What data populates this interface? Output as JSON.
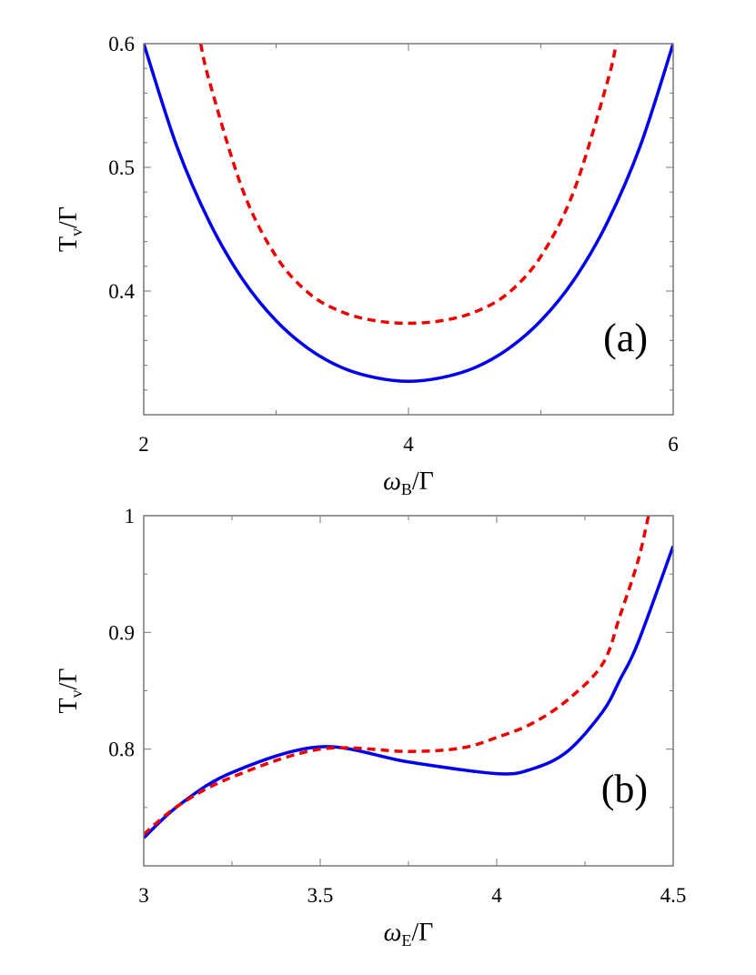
{
  "chart_data": [
    {
      "type": "line",
      "panel_label": "(a)",
      "xlabel": {
        "main": "ω",
        "sub": "B",
        "rest": "/Γ"
      },
      "ylabel": {
        "main": "T",
        "sub": "v",
        "rest": "/Γ"
      },
      "xlim": [
        2,
        6
      ],
      "ylim": [
        0.3,
        0.6
      ],
      "xticks": [
        2,
        4,
        6
      ],
      "xtick_labels": [
        "2",
        "4",
        "6"
      ],
      "yticks": [
        0.4,
        0.5,
        0.6
      ],
      "ytick_labels": [
        "0.4",
        "0.5",
        "0.6"
      ],
      "grid": false,
      "series": [
        {
          "style": "solid",
          "color": "#0000ee",
          "x": [
            2.0,
            2.25,
            2.5,
            2.75,
            3.0,
            3.25,
            3.5,
            3.75,
            4.0,
            4.25,
            4.5,
            4.75,
            5.0,
            5.25,
            5.5,
            5.75,
            6.0
          ],
          "y": [
            0.6,
            0.517,
            0.455,
            0.409,
            0.376,
            0.353,
            0.338,
            0.33,
            0.327,
            0.33,
            0.338,
            0.353,
            0.376,
            0.409,
            0.455,
            0.517,
            0.6
          ]
        },
        {
          "style": "dashed",
          "color": "#ee0000",
          "x": [
            2.43,
            2.5,
            2.75,
            3.0,
            3.25,
            3.5,
            3.75,
            4.0,
            4.25,
            4.5,
            4.75,
            5.0,
            5.25,
            5.5,
            5.57
          ],
          "y": [
            0.6,
            0.568,
            0.481,
            0.428,
            0.398,
            0.383,
            0.376,
            0.374,
            0.376,
            0.383,
            0.398,
            0.428,
            0.481,
            0.568,
            0.6
          ]
        }
      ]
    },
    {
      "type": "line",
      "panel_label": "(b)",
      "xlabel": {
        "main": "ω",
        "sub": "E",
        "rest": "/Γ"
      },
      "ylabel": {
        "main": "T",
        "sub": "v",
        "rest": "/Γ"
      },
      "xlim": [
        3,
        4.5
      ],
      "ylim": [
        0.7,
        1.0
      ],
      "xticks": [
        3,
        3.5,
        4,
        4.5
      ],
      "xtick_labels": [
        "3",
        "3.5",
        "4",
        "4.5"
      ],
      "yticks": [
        0.8,
        0.9,
        1.0
      ],
      "ytick_labels": [
        "0.8",
        "0.9",
        "1"
      ],
      "grid": false,
      "series": [
        {
          "style": "solid",
          "color": "#0000ee",
          "x": [
            3.0,
            3.1,
            3.25,
            3.5,
            3.75,
            4.0,
            4.1,
            4.2,
            4.3,
            4.35,
            4.4,
            4.5
          ],
          "y": [
            0.724,
            0.752,
            0.78,
            0.802,
            0.789,
            0.779,
            0.783,
            0.798,
            0.832,
            0.86,
            0.891,
            0.974
          ]
        },
        {
          "style": "dashed",
          "color": "#ee0000",
          "x": [
            3.0,
            3.1,
            3.25,
            3.5,
            3.75,
            3.9,
            4.0,
            4.1,
            4.2,
            4.3,
            4.35,
            4.4,
            4.43
          ],
          "y": [
            0.727,
            0.752,
            0.776,
            0.8,
            0.798,
            0.801,
            0.81,
            0.822,
            0.842,
            0.873,
            0.915,
            0.961,
            1.0
          ]
        }
      ]
    }
  ]
}
